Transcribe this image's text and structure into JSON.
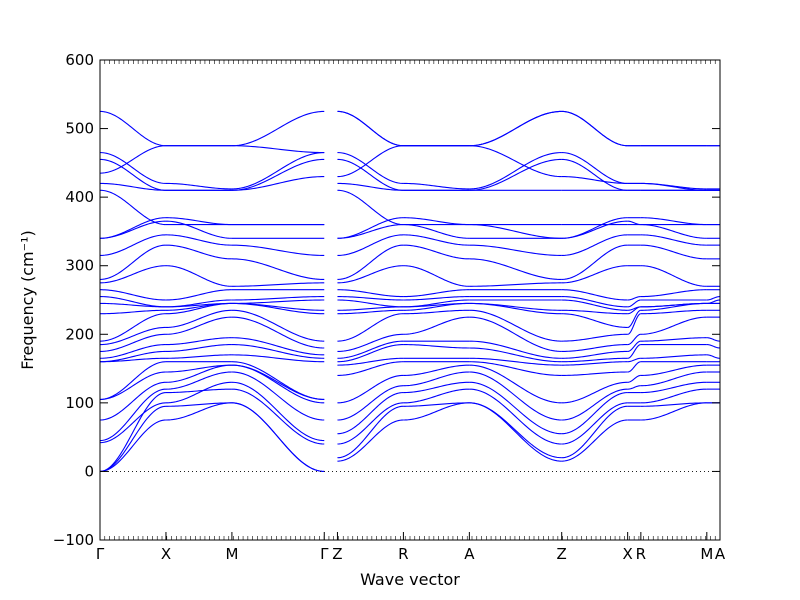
{
  "chart_data": {
    "type": "line",
    "xlabel": "Wave vector",
    "ylabel": "Frequency (cm⁻¹)",
    "ylim": [
      -100,
      600
    ],
    "yticks": [
      -100,
      0,
      100,
      200,
      300,
      400,
      500,
      600
    ],
    "grid": false,
    "series_color": "#0000ff",
    "zero_line_color": "#000000",
    "path_points": [
      {
        "label": "Γ",
        "x": 0.0
      },
      {
        "label": "X",
        "x": 1.0
      },
      {
        "label": "M",
        "x": 2.0
      },
      {
        "label": "Γ",
        "x": 3.4
      },
      {
        "label": "Z",
        "x": 3.6
      },
      {
        "label": "R",
        "x": 4.6
      },
      {
        "label": "A",
        "x": 5.6
      },
      {
        "label": "Z",
        "x": 7.0
      },
      {
        "label": "X",
        "x": 8.0
      },
      {
        "label": "R",
        "x": 8.2
      },
      {
        "label": "M",
        "x": 9.2
      },
      {
        "label": "A",
        "x": 9.4
      }
    ],
    "segments": [
      {
        "from": "Γ",
        "to": "X",
        "x": [
          0.0,
          1.0
        ],
        "bands": [
          [
            0,
            75
          ],
          [
            0,
            95
          ],
          [
            0,
            115
          ],
          [
            42,
            100
          ],
          [
            45,
            120
          ],
          [
            75,
            130
          ],
          [
            105,
            145
          ],
          [
            105,
            160
          ],
          [
            160,
            165
          ],
          [
            160,
            175
          ],
          [
            165,
            185
          ],
          [
            175,
            200
          ],
          [
            185,
            210
          ],
          [
            190,
            230
          ],
          [
            230,
            235
          ],
          [
            245,
            240
          ],
          [
            255,
            240
          ],
          [
            265,
            250
          ],
          [
            275,
            300
          ],
          [
            280,
            330
          ],
          [
            315,
            345
          ],
          [
            340,
            365
          ],
          [
            340,
            370
          ],
          [
            410,
            360
          ],
          [
            420,
            410
          ],
          [
            435,
            475
          ],
          [
            455,
            410
          ],
          [
            465,
            420
          ],
          [
            525,
            475
          ]
        ]
      },
      {
        "from": "X",
        "to": "M",
        "x": [
          1.0,
          2.0
        ],
        "bands": [
          [
            75,
            100
          ],
          [
            95,
            100
          ],
          [
            115,
            120
          ],
          [
            100,
            130
          ],
          [
            120,
            145
          ],
          [
            130,
            155
          ],
          [
            145,
            155
          ],
          [
            160,
            160
          ],
          [
            165,
            170
          ],
          [
            175,
            185
          ],
          [
            185,
            195
          ],
          [
            200,
            225
          ],
          [
            210,
            235
          ],
          [
            230,
            245
          ],
          [
            235,
            245
          ],
          [
            240,
            245
          ],
          [
            240,
            250
          ],
          [
            250,
            265
          ],
          [
            300,
            270
          ],
          [
            330,
            310
          ],
          [
            345,
            330
          ],
          [
            365,
            340
          ],
          [
            370,
            360
          ],
          [
            360,
            360
          ],
          [
            410,
            410
          ],
          [
            475,
            475
          ],
          [
            410,
            410
          ],
          [
            420,
            412
          ],
          [
            475,
            475
          ]
        ]
      },
      {
        "from": "M",
        "to": "Γ/Z",
        "x": [
          2.0,
          3.4
        ],
        "bands": [
          [
            100,
            0
          ],
          [
            100,
            0
          ],
          [
            120,
            40
          ],
          [
            130,
            45
          ],
          [
            145,
            75
          ],
          [
            155,
            100
          ],
          [
            155,
            105
          ],
          [
            160,
            105
          ],
          [
            170,
            160
          ],
          [
            185,
            165
          ],
          [
            195,
            170
          ],
          [
            225,
            180
          ],
          [
            235,
            190
          ],
          [
            245,
            230
          ],
          [
            245,
            235
          ],
          [
            245,
            250
          ],
          [
            250,
            255
          ],
          [
            265,
            265
          ],
          [
            270,
            275
          ],
          [
            310,
            280
          ],
          [
            330,
            315
          ],
          [
            340,
            340
          ],
          [
            360,
            360
          ],
          [
            360,
            360
          ],
          [
            410,
            430
          ],
          [
            475,
            525
          ],
          [
            410,
            455
          ],
          [
            412,
            465
          ],
          [
            475,
            465
          ]
        ]
      },
      {
        "from": "Z",
        "to": "R",
        "x": [
          3.6,
          4.6
        ],
        "bands": [
          [
            15,
            75
          ],
          [
            20,
            95
          ],
          [
            40,
            100
          ],
          [
            55,
            115
          ],
          [
            75,
            125
          ],
          [
            100,
            140
          ],
          [
            140,
            160
          ],
          [
            155,
            165
          ],
          [
            160,
            185
          ],
          [
            165,
            190
          ],
          [
            175,
            200
          ],
          [
            190,
            230
          ],
          [
            230,
            235
          ],
          [
            235,
            240
          ],
          [
            250,
            240
          ],
          [
            255,
            250
          ],
          [
            265,
            255
          ],
          [
            275,
            300
          ],
          [
            280,
            330
          ],
          [
            315,
            345
          ],
          [
            340,
            360
          ],
          [
            340,
            370
          ],
          [
            410,
            360
          ],
          [
            420,
            410
          ],
          [
            430,
            475
          ],
          [
            455,
            410
          ],
          [
            465,
            420
          ],
          [
            525,
            475
          ],
          [
            525,
            475
          ]
        ]
      },
      {
        "from": "R",
        "to": "A",
        "x": [
          4.6,
          5.6
        ],
        "bands": [
          [
            75,
            100
          ],
          [
            95,
            100
          ],
          [
            100,
            120
          ],
          [
            115,
            130
          ],
          [
            125,
            145
          ],
          [
            140,
            155
          ],
          [
            160,
            160
          ],
          [
            165,
            165
          ],
          [
            185,
            180
          ],
          [
            190,
            190
          ],
          [
            200,
            225
          ],
          [
            230,
            235
          ],
          [
            235,
            245
          ],
          [
            240,
            245
          ],
          [
            240,
            250
          ],
          [
            250,
            255
          ],
          [
            255,
            265
          ],
          [
            300,
            270
          ],
          [
            330,
            310
          ],
          [
            345,
            330
          ],
          [
            360,
            340
          ],
          [
            370,
            360
          ],
          [
            360,
            360
          ],
          [
            410,
            410
          ],
          [
            475,
            475
          ],
          [
            410,
            410
          ],
          [
            420,
            412
          ],
          [
            475,
            475
          ],
          [
            475,
            475
          ]
        ]
      },
      {
        "from": "A",
        "to": "Z",
        "x": [
          5.6,
          7.0
        ],
        "bands": [
          [
            100,
            15
          ],
          [
            100,
            20
          ],
          [
            120,
            40
          ],
          [
            130,
            55
          ],
          [
            145,
            75
          ],
          [
            155,
            100
          ],
          [
            160,
            140
          ],
          [
            165,
            155
          ],
          [
            180,
            160
          ],
          [
            190,
            165
          ],
          [
            225,
            175
          ],
          [
            235,
            190
          ],
          [
            245,
            230
          ],
          [
            245,
            235
          ],
          [
            250,
            250
          ],
          [
            255,
            255
          ],
          [
            265,
            265
          ],
          [
            270,
            275
          ],
          [
            310,
            280
          ],
          [
            330,
            315
          ],
          [
            340,
            340
          ],
          [
            360,
            340
          ],
          [
            360,
            360
          ],
          [
            410,
            410
          ],
          [
            475,
            430
          ],
          [
            410,
            455
          ],
          [
            412,
            465
          ],
          [
            475,
            525
          ],
          [
            475,
            525
          ]
        ]
      },
      {
        "from": "Z",
        "to": "X",
        "x": [
          7.0,
          8.0
        ],
        "bands": [
          [
            15,
            75
          ],
          [
            20,
            95
          ],
          [
            40,
            100
          ],
          [
            55,
            115
          ],
          [
            75,
            120
          ],
          [
            100,
            130
          ],
          [
            140,
            145
          ],
          [
            155,
            160
          ],
          [
            160,
            165
          ],
          [
            165,
            175
          ],
          [
            175,
            185
          ],
          [
            190,
            200
          ],
          [
            230,
            210
          ],
          [
            235,
            230
          ],
          [
            250,
            235
          ],
          [
            255,
            240
          ],
          [
            265,
            250
          ],
          [
            275,
            300
          ],
          [
            280,
            330
          ],
          [
            315,
            345
          ],
          [
            340,
            365
          ],
          [
            340,
            370
          ],
          [
            360,
            360
          ],
          [
            410,
            410
          ],
          [
            430,
            420
          ],
          [
            455,
            410
          ],
          [
            465,
            420
          ],
          [
            525,
            475
          ],
          [
            525,
            475
          ]
        ]
      },
      {
        "from": "X",
        "to": "R",
        "x": [
          8.0,
          8.2
        ],
        "bands": [
          [
            75,
            75
          ],
          [
            95,
            95
          ],
          [
            100,
            100
          ],
          [
            115,
            115
          ],
          [
            120,
            125
          ],
          [
            130,
            140
          ],
          [
            145,
            160
          ],
          [
            160,
            165
          ],
          [
            165,
            185
          ],
          [
            175,
            190
          ],
          [
            185,
            200
          ],
          [
            200,
            230
          ],
          [
            210,
            235
          ],
          [
            230,
            240
          ],
          [
            235,
            240
          ],
          [
            240,
            250
          ],
          [
            250,
            255
          ],
          [
            300,
            300
          ],
          [
            330,
            330
          ],
          [
            345,
            345
          ],
          [
            365,
            360
          ],
          [
            370,
            370
          ],
          [
            360,
            360
          ],
          [
            410,
            410
          ],
          [
            420,
            420
          ],
          [
            410,
            410
          ],
          [
            420,
            420
          ],
          [
            475,
            475
          ],
          [
            475,
            475
          ]
        ]
      },
      {
        "from": "R",
        "to": "M",
        "x": [
          8.2,
          9.2
        ],
        "bands": [
          [
            75,
            100
          ],
          [
            95,
            100
          ],
          [
            100,
            120
          ],
          [
            115,
            130
          ],
          [
            125,
            145
          ],
          [
            140,
            155
          ],
          [
            160,
            160
          ],
          [
            165,
            170
          ],
          [
            185,
            185
          ],
          [
            190,
            195
          ],
          [
            200,
            225
          ],
          [
            230,
            235
          ],
          [
            235,
            245
          ],
          [
            240,
            245
          ],
          [
            240,
            245
          ],
          [
            250,
            250
          ],
          [
            255,
            265
          ],
          [
            300,
            270
          ],
          [
            330,
            310
          ],
          [
            345,
            330
          ],
          [
            360,
            340
          ],
          [
            370,
            360
          ],
          [
            360,
            360
          ],
          [
            410,
            410
          ],
          [
            420,
            410
          ],
          [
            410,
            410
          ],
          [
            420,
            412
          ],
          [
            475,
            475
          ],
          [
            475,
            475
          ]
        ]
      },
      {
        "from": "M",
        "to": "A",
        "x": [
          9.2,
          9.4
        ],
        "bands": [
          [
            100,
            100
          ],
          [
            100,
            100
          ],
          [
            120,
            120
          ],
          [
            130,
            130
          ],
          [
            145,
            145
          ],
          [
            155,
            155
          ],
          [
            160,
            160
          ],
          [
            170,
            165
          ],
          [
            185,
            180
          ],
          [
            195,
            190
          ],
          [
            225,
            225
          ],
          [
            235,
            235
          ],
          [
            245,
            245
          ],
          [
            245,
            245
          ],
          [
            245,
            250
          ],
          [
            250,
            255
          ],
          [
            265,
            265
          ],
          [
            270,
            270
          ],
          [
            310,
            310
          ],
          [
            330,
            330
          ],
          [
            340,
            340
          ],
          [
            360,
            360
          ],
          [
            360,
            360
          ],
          [
            410,
            410
          ],
          [
            410,
            410
          ],
          [
            410,
            410
          ],
          [
            412,
            412
          ],
          [
            475,
            475
          ],
          [
            475,
            475
          ]
        ]
      }
    ]
  }
}
